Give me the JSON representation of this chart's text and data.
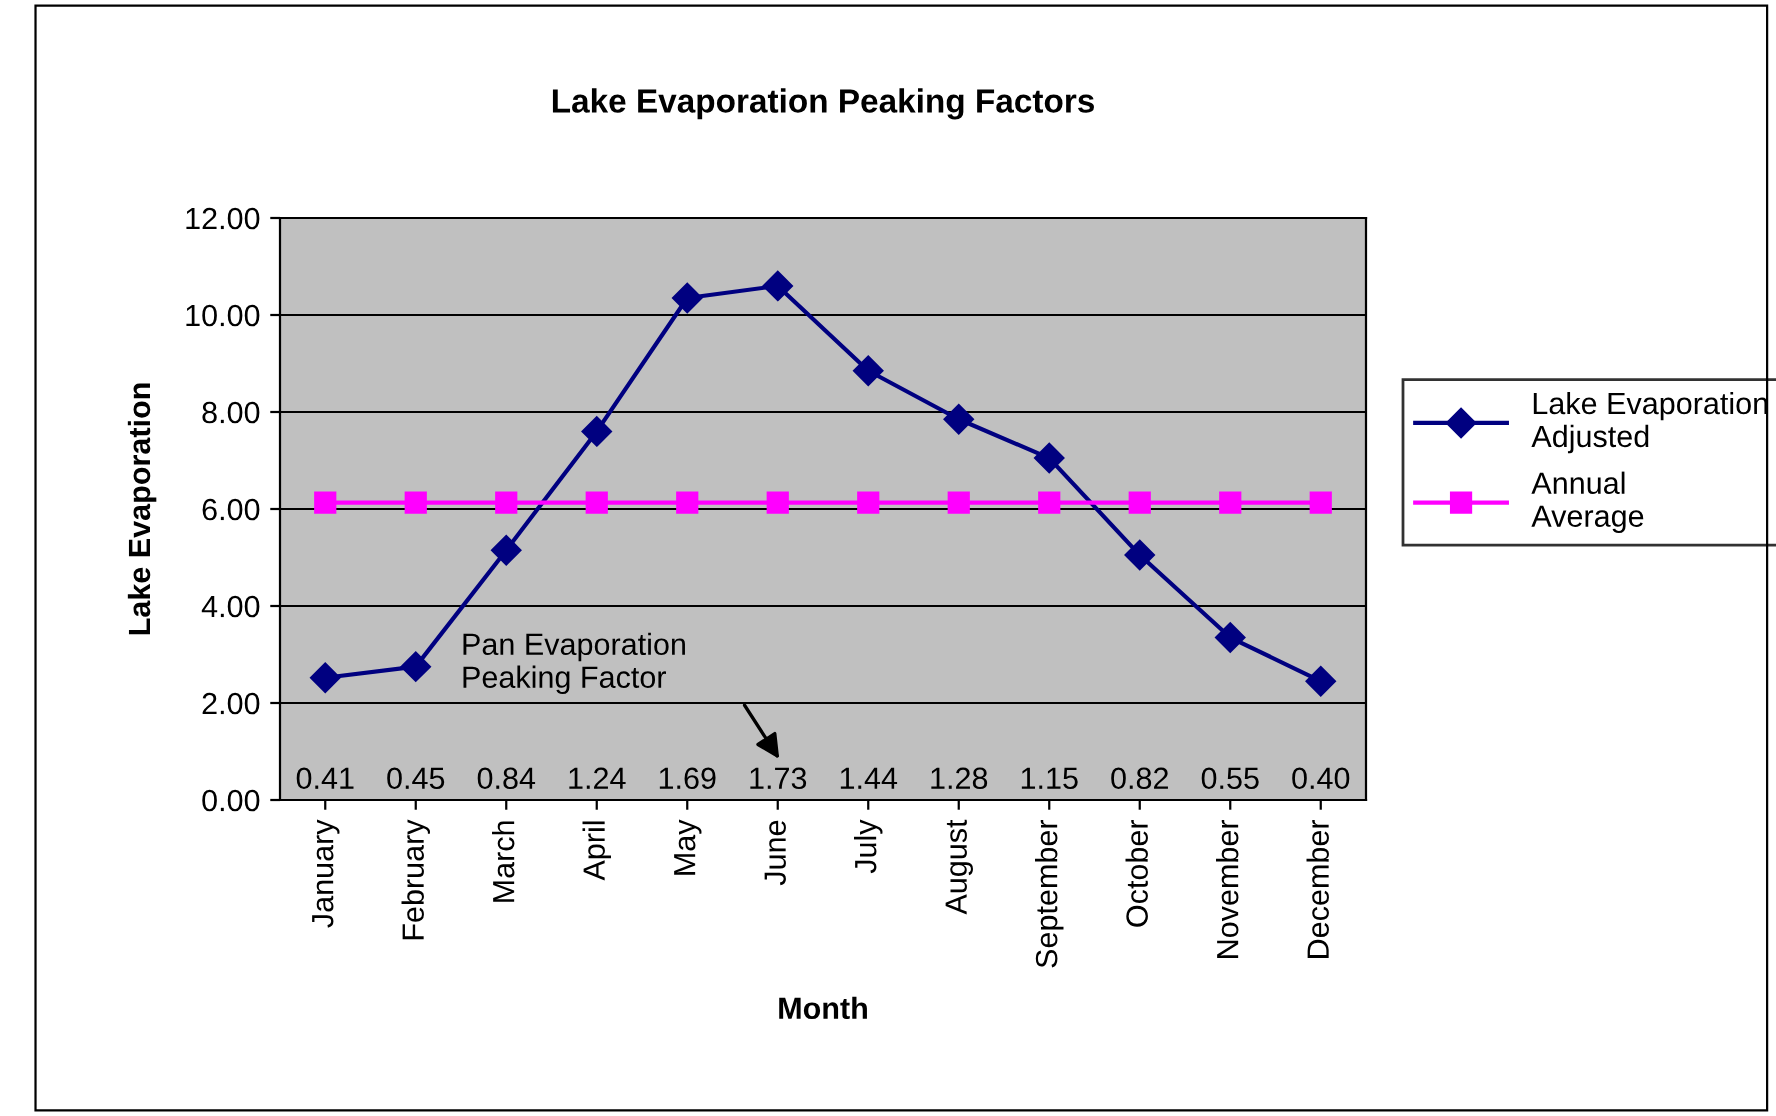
{
  "chart_data": {
    "type": "line",
    "title": "Lake Evaporation Peaking Factors",
    "xlabel": "Month",
    "ylabel": "Lake Evaporation",
    "categories": [
      "January",
      "February",
      "March",
      "April",
      "May",
      "June",
      "July",
      "August",
      "September",
      "October",
      "November",
      "December"
    ],
    "series": [
      {
        "name": "Lake Evaporation\nAdjusted",
        "color": "#000080",
        "marker": "diamond",
        "values": [
          2.52,
          2.75,
          5.15,
          7.6,
          10.35,
          10.6,
          8.85,
          7.85,
          7.05,
          5.05,
          3.35,
          2.45
        ]
      },
      {
        "name": "Annual\nAverage",
        "color": "#ff00ff",
        "marker": "square",
        "values": [
          6.13,
          6.13,
          6.13,
          6.13,
          6.13,
          6.13,
          6.13,
          6.13,
          6.13,
          6.13,
          6.13,
          6.13
        ]
      }
    ],
    "ylim": [
      0,
      12
    ],
    "yticks": [
      {
        "value": 0,
        "label": "0.00"
      },
      {
        "value": 2,
        "label": "2.00"
      },
      {
        "value": 4,
        "label": "4.00"
      },
      {
        "value": 6,
        "label": "6.00"
      },
      {
        "value": 8,
        "label": "8.00"
      },
      {
        "value": 10,
        "label": "10.00"
      },
      {
        "value": 12,
        "label": "12.00"
      }
    ],
    "grid": "y",
    "legend": "right",
    "line_style": "solid",
    "annotations": [
      "Pan Evaporation\nPeaking Factor",
      "0.41",
      "0.45",
      "0.84",
      "1.24",
      "1.69",
      "1.73",
      "1.44",
      "1.28",
      "1.15",
      "0.82",
      "0.55",
      "0.40"
    ]
  }
}
